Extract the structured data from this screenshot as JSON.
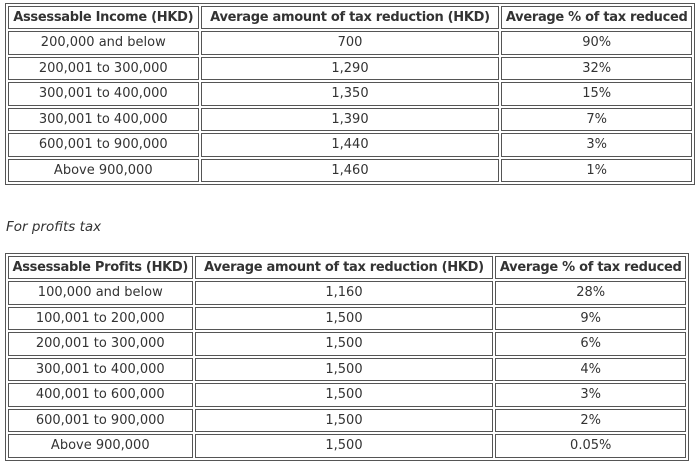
{
  "income_table": {
    "headers": [
      "Assessable Income (HKD)",
      "Average amount of tax reduction (HKD)",
      "Average % of tax reduced"
    ],
    "rows": [
      [
        "200,000 and below",
        "700",
        "90%"
      ],
      [
        "200,001 to 300,000",
        "1,290",
        "32%"
      ],
      [
        "300,001 to 400,000",
        "1,350",
        "15%"
      ],
      [
        "300,001 to 400,000",
        "1,390",
        "7%"
      ],
      [
        "600,001 to 900,000",
        "1,440",
        "3%"
      ],
      [
        "Above 900,000",
        "1,460",
        "1%"
      ]
    ]
  },
  "profits_caption": "For profits tax",
  "profits_table": {
    "headers": [
      "Assessable Profits (HKD)",
      "Average amount of tax reduction (HKD)",
      "Average % of tax reduced"
    ],
    "rows": [
      [
        "100,000 and below",
        "1,160",
        "28%"
      ],
      [
        "100,001 to 200,000",
        "1,500",
        "9%"
      ],
      [
        "200,001 to 300,000",
        "1,500",
        "6%"
      ],
      [
        "300,001 to 400,000",
        "1,500",
        "4%"
      ],
      [
        "400,001 to 600,000",
        "1,500",
        "3%"
      ],
      [
        "600,001 to 900,000",
        "1,500",
        "2%"
      ],
      [
        "Above 900,000",
        "1,500",
        "0.05%"
      ]
    ]
  }
}
